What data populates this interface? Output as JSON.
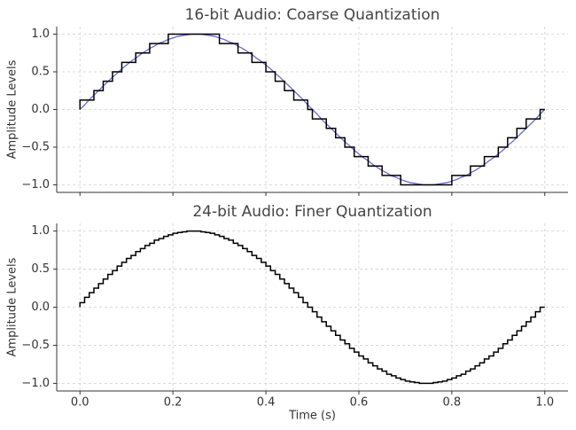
{
  "chart_data": [
    {
      "type": "line",
      "title": "16-bit Audio: Coarse Quantization",
      "ylabel": "Amplitude Levels",
      "x": [
        0,
        0.01,
        0.02,
        0.03,
        0.04,
        0.05,
        0.06,
        0.07,
        0.08,
        0.09,
        0.1,
        0.11,
        0.12,
        0.13,
        0.14,
        0.15,
        0.16,
        0.17,
        0.18,
        0.19,
        0.2,
        0.21,
        0.22,
        0.23,
        0.24,
        0.25,
        0.26,
        0.27,
        0.28,
        0.29,
        0.3,
        0.31,
        0.32,
        0.33,
        0.34,
        0.35,
        0.36,
        0.37,
        0.38,
        0.39,
        0.4,
        0.41,
        0.42,
        0.43,
        0.44,
        0.45,
        0.46,
        0.47,
        0.48,
        0.49,
        0.5,
        0.51,
        0.52,
        0.53,
        0.54,
        0.55,
        0.56,
        0.57,
        0.58,
        0.59,
        0.6,
        0.61,
        0.62,
        0.63,
        0.64,
        0.65,
        0.66,
        0.67,
        0.68,
        0.69,
        0.7,
        0.71,
        0.72,
        0.73,
        0.74,
        0.75,
        0.76,
        0.77,
        0.78,
        0.79,
        0.8,
        0.81,
        0.82,
        0.83,
        0.84,
        0.85,
        0.86,
        0.87,
        0.88,
        0.89,
        0.9,
        0.91,
        0.92,
        0.93,
        0.94,
        0.95,
        0.96,
        0.97,
        0.98,
        0.99,
        1
      ],
      "series": [
        {
          "color": "#6a6ad0",
          "style": "line",
          "values": [
            0,
            0.06,
            0.13,
            0.19,
            0.25,
            0.31,
            0.37,
            0.43,
            0.48,
            0.54,
            0.59,
            0.64,
            0.68,
            0.73,
            0.77,
            0.81,
            0.84,
            0.88,
            0.9,
            0.93,
            0.95,
            0.97,
            0.98,
            0.99,
            1,
            1,
            1,
            0.99,
            0.98,
            0.97,
            0.95,
            0.93,
            0.9,
            0.88,
            0.84,
            0.81,
            0.77,
            0.73,
            0.68,
            0.64,
            0.59,
            0.54,
            0.48,
            0.43,
            0.37,
            0.31,
            0.25,
            0.19,
            0.13,
            0.06,
            0,
            -0.06,
            -0.13,
            -0.19,
            -0.25,
            -0.31,
            -0.37,
            -0.43,
            -0.48,
            -0.54,
            -0.59,
            -0.64,
            -0.68,
            -0.73,
            -0.77,
            -0.81,
            -0.84,
            -0.88,
            -0.9,
            -0.93,
            -0.95,
            -0.97,
            -0.98,
            -0.99,
            -1,
            -1,
            -1,
            -0.99,
            -0.98,
            -0.97,
            -0.95,
            -0.93,
            -0.9,
            -0.88,
            -0.84,
            -0.81,
            -0.77,
            -0.73,
            -0.68,
            -0.64,
            -0.59,
            -0.54,
            -0.48,
            -0.43,
            -0.37,
            -0.31,
            -0.25,
            -0.19,
            -0.13,
            -0.06,
            0
          ]
        },
        {
          "color": "#000000",
          "style": "step-pre",
          "values": [
            0,
            0.125,
            0.125,
            0.125,
            0.25,
            0.25,
            0.375,
            0.375,
            0.5,
            0.5,
            0.625,
            0.625,
            0.625,
            0.75,
            0.75,
            0.75,
            0.875,
            0.875,
            0.875,
            0.875,
            1,
            1,
            1,
            1,
            1,
            1,
            1,
            1,
            1,
            1,
            1,
            0.875,
            0.875,
            0.875,
            0.875,
            0.75,
            0.75,
            0.75,
            0.625,
            0.625,
            0.625,
            0.5,
            0.5,
            0.375,
            0.375,
            0.25,
            0.25,
            0.125,
            0.125,
            0.125,
            0,
            -0.125,
            -0.125,
            -0.125,
            -0.25,
            -0.25,
            -0.375,
            -0.375,
            -0.5,
            -0.5,
            -0.625,
            -0.625,
            -0.625,
            -0.75,
            -0.75,
            -0.75,
            -0.875,
            -0.875,
            -0.875,
            -0.875,
            -1,
            -1,
            -1,
            -1,
            -1,
            -1,
            -1,
            -1,
            -1,
            -1,
            -1,
            -0.875,
            -0.875,
            -0.875,
            -0.875,
            -0.75,
            -0.75,
            -0.75,
            -0.625,
            -0.625,
            -0.625,
            -0.5,
            -0.5,
            -0.375,
            -0.375,
            -0.25,
            -0.25,
            -0.125,
            -0.125,
            -0.125,
            0
          ]
        }
      ],
      "xlim": [
        -0.05,
        1.05
      ],
      "ylim": [
        -1.1,
        1.1
      ],
      "xticks": [
        {
          "value": 0,
          "label": "0.0"
        },
        {
          "value": 0.2,
          "label": "0.2"
        },
        {
          "value": 0.4,
          "label": "0.4"
        },
        {
          "value": 0.6,
          "label": "0.6"
        },
        {
          "value": 0.8,
          "label": "0.8"
        },
        {
          "value": 1,
          "label": "1.0"
        }
      ],
      "show_xtick_labels": false,
      "yticks": [
        {
          "value": -1,
          "label": "−1.0"
        },
        {
          "value": -0.5,
          "label": "−0.5"
        },
        {
          "value": 0,
          "label": "0.0"
        },
        {
          "value": 0.5,
          "label": "0.5"
        },
        {
          "value": 1,
          "label": "1.0"
        }
      ],
      "grid": true
    },
    {
      "type": "line",
      "title": "24-bit Audio: Finer Quantization",
      "ylabel": "Amplitude Levels",
      "xlabel": "Time (s)",
      "x": [
        0,
        0.01,
        0.02,
        0.03,
        0.04,
        0.05,
        0.06,
        0.07,
        0.08,
        0.09,
        0.1,
        0.11,
        0.12,
        0.13,
        0.14,
        0.15,
        0.16,
        0.17,
        0.18,
        0.19,
        0.2,
        0.21,
        0.22,
        0.23,
        0.24,
        0.25,
        0.26,
        0.27,
        0.28,
        0.29,
        0.3,
        0.31,
        0.32,
        0.33,
        0.34,
        0.35,
        0.36,
        0.37,
        0.38,
        0.39,
        0.4,
        0.41,
        0.42,
        0.43,
        0.44,
        0.45,
        0.46,
        0.47,
        0.48,
        0.49,
        0.5,
        0.51,
        0.52,
        0.53,
        0.54,
        0.55,
        0.56,
        0.57,
        0.58,
        0.59,
        0.6,
        0.61,
        0.62,
        0.63,
        0.64,
        0.65,
        0.66,
        0.67,
        0.68,
        0.69,
        0.7,
        0.71,
        0.72,
        0.73,
        0.74,
        0.75,
        0.76,
        0.77,
        0.78,
        0.79,
        0.8,
        0.81,
        0.82,
        0.83,
        0.84,
        0.85,
        0.86,
        0.87,
        0.88,
        0.89,
        0.9,
        0.91,
        0.92,
        0.93,
        0.94,
        0.95,
        0.96,
        0.97,
        0.98,
        0.99,
        1
      ],
      "series": [
        {
          "color": "#000000",
          "style": "step-pre",
          "values": [
            0,
            0.06,
            0.13,
            0.19,
            0.25,
            0.31,
            0.37,
            0.43,
            0.48,
            0.54,
            0.59,
            0.64,
            0.68,
            0.73,
            0.77,
            0.81,
            0.84,
            0.88,
            0.9,
            0.93,
            0.95,
            0.97,
            0.98,
            0.99,
            1,
            1,
            1,
            0.99,
            0.98,
            0.97,
            0.95,
            0.93,
            0.9,
            0.88,
            0.84,
            0.81,
            0.77,
            0.73,
            0.68,
            0.64,
            0.59,
            0.54,
            0.48,
            0.43,
            0.37,
            0.31,
            0.25,
            0.19,
            0.13,
            0.06,
            0,
            -0.06,
            -0.13,
            -0.19,
            -0.25,
            -0.31,
            -0.37,
            -0.43,
            -0.48,
            -0.54,
            -0.59,
            -0.64,
            -0.68,
            -0.73,
            -0.77,
            -0.81,
            -0.84,
            -0.88,
            -0.9,
            -0.93,
            -0.95,
            -0.97,
            -0.98,
            -0.99,
            -1,
            -1,
            -1,
            -0.99,
            -0.98,
            -0.97,
            -0.95,
            -0.93,
            -0.9,
            -0.88,
            -0.84,
            -0.81,
            -0.77,
            -0.73,
            -0.68,
            -0.64,
            -0.59,
            -0.54,
            -0.48,
            -0.43,
            -0.37,
            -0.31,
            -0.25,
            -0.19,
            -0.13,
            -0.06,
            0
          ]
        }
      ],
      "xlim": [
        -0.05,
        1.05
      ],
      "ylim": [
        -1.1,
        1.1
      ],
      "xticks": [
        {
          "value": 0,
          "label": "0.0"
        },
        {
          "value": 0.2,
          "label": "0.2"
        },
        {
          "value": 0.4,
          "label": "0.4"
        },
        {
          "value": 0.6,
          "label": "0.6"
        },
        {
          "value": 0.8,
          "label": "0.8"
        },
        {
          "value": 1,
          "label": "1.0"
        }
      ],
      "show_xtick_labels": true,
      "yticks": [
        {
          "value": -1,
          "label": "−1.0"
        },
        {
          "value": -0.5,
          "label": "−0.5"
        },
        {
          "value": 0,
          "label": "0.0"
        },
        {
          "value": 0.5,
          "label": "0.5"
        },
        {
          "value": 1,
          "label": "1.0"
        }
      ],
      "grid": true
    }
  ]
}
